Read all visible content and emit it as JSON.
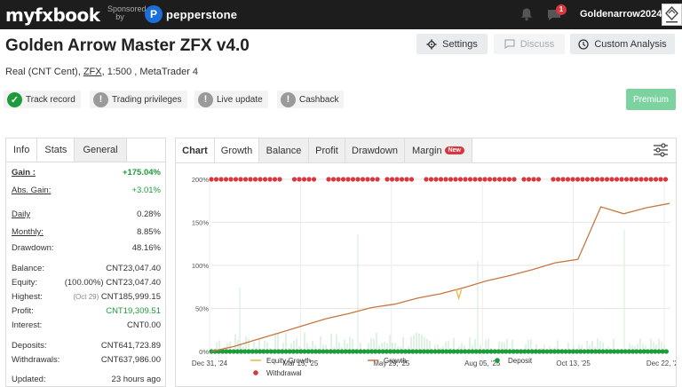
{
  "topbar": {
    "logo_text": "myfxbook",
    "sponsored_label": "Sponsored by",
    "sponsor_name": "pepperstone",
    "sponsor_mark": "P",
    "notification_count": "1",
    "username": "Goldenarrow2024",
    "bell_icon": "bell-icon",
    "message_icon": "message-icon"
  },
  "header": {
    "title": "Golden Arrow Master ZFX v4.0",
    "account_type": "Real (CNT Cent), ",
    "broker": "ZFX",
    "details": ", 1:500 , MetaTrader 4",
    "buttons": {
      "settings": "Settings",
      "discuss": "Discuss",
      "custom_analysis": "Custom Analysis"
    },
    "premium": "Premium"
  },
  "status_badges": [
    {
      "label": "Track record",
      "state": "ok"
    },
    {
      "label": "Trading privileges",
      "state": "warn"
    },
    {
      "label": "Live update",
      "state": "warn"
    },
    {
      "label": "Cashback",
      "state": "warn"
    }
  ],
  "info_panel": {
    "tabs": [
      "Info",
      "Stats",
      "General"
    ],
    "rows": [
      {
        "label": "Gain :",
        "value": "+175.04%",
        "underline": true,
        "green": true,
        "bold": true
      },
      {
        "label": "Abs. Gain:",
        "value": "+3.01%",
        "underline": true,
        "green": true
      },
      {
        "label": "Daily",
        "value": "0.28%",
        "underline": true
      },
      {
        "label": "Monthly:",
        "value": "8.85%",
        "underline": true
      },
      {
        "label": "Drawdown:",
        "value": "48.16%"
      },
      {
        "label": "Balance:",
        "value": "CNT23,047.40"
      },
      {
        "label": "Equity:",
        "note": "(100.00%)",
        "value": "CNT23,047.40"
      },
      {
        "label": "Highest:",
        "note": "(Oct 29)",
        "value": "CNT185,999.15"
      },
      {
        "label": "Profit:",
        "value": "CNT19,309.51",
        "green": true
      },
      {
        "label": "Interest:",
        "value": "CNT0.00"
      },
      {
        "label": "Deposits:",
        "value": "CNT641,723.89"
      },
      {
        "label": "Withdrawals:",
        "value": "CNT637,986.00"
      },
      {
        "label": "Updated:",
        "value": "23 hours ago"
      }
    ]
  },
  "chart_panel": {
    "tabs": [
      "Chart",
      "Growth",
      "Balance",
      "Profit",
      "Drawdown",
      "Margin"
    ],
    "new_badge": "New"
  },
  "chart_data": {
    "type": "line",
    "x_ticks": [
      "Dec 31, '24",
      "Mar 15, '25",
      "May 29, '25",
      "Aug 05, '25",
      "Oct 13, '25",
      "Dec 22, '25"
    ],
    "y_ticks": [
      "0%",
      "50%",
      "100%",
      "150%",
      "200%"
    ],
    "ylim": [
      0,
      200
    ],
    "series": [
      {
        "name": "Equity Growth",
        "color": "#e9b83d"
      },
      {
        "name": "Growth",
        "color": "#c8773f",
        "x": [
          0,
          5,
          10,
          15,
          20,
          25,
          30,
          35,
          40,
          45,
          47,
          50,
          55,
          60,
          65,
          70,
          75,
          80,
          85,
          90,
          95,
          100
        ],
        "y": [
          0,
          6,
          14,
          22,
          30,
          38,
          44,
          51,
          55,
          62,
          64,
          67,
          74,
          82,
          88,
          95,
          103,
          107,
          168,
          160,
          167,
          172
        ]
      },
      {
        "name": "Deposit",
        "color": "#1e9b3b"
      },
      {
        "name": "Withdrawal",
        "color": "#d9363e"
      }
    ]
  }
}
